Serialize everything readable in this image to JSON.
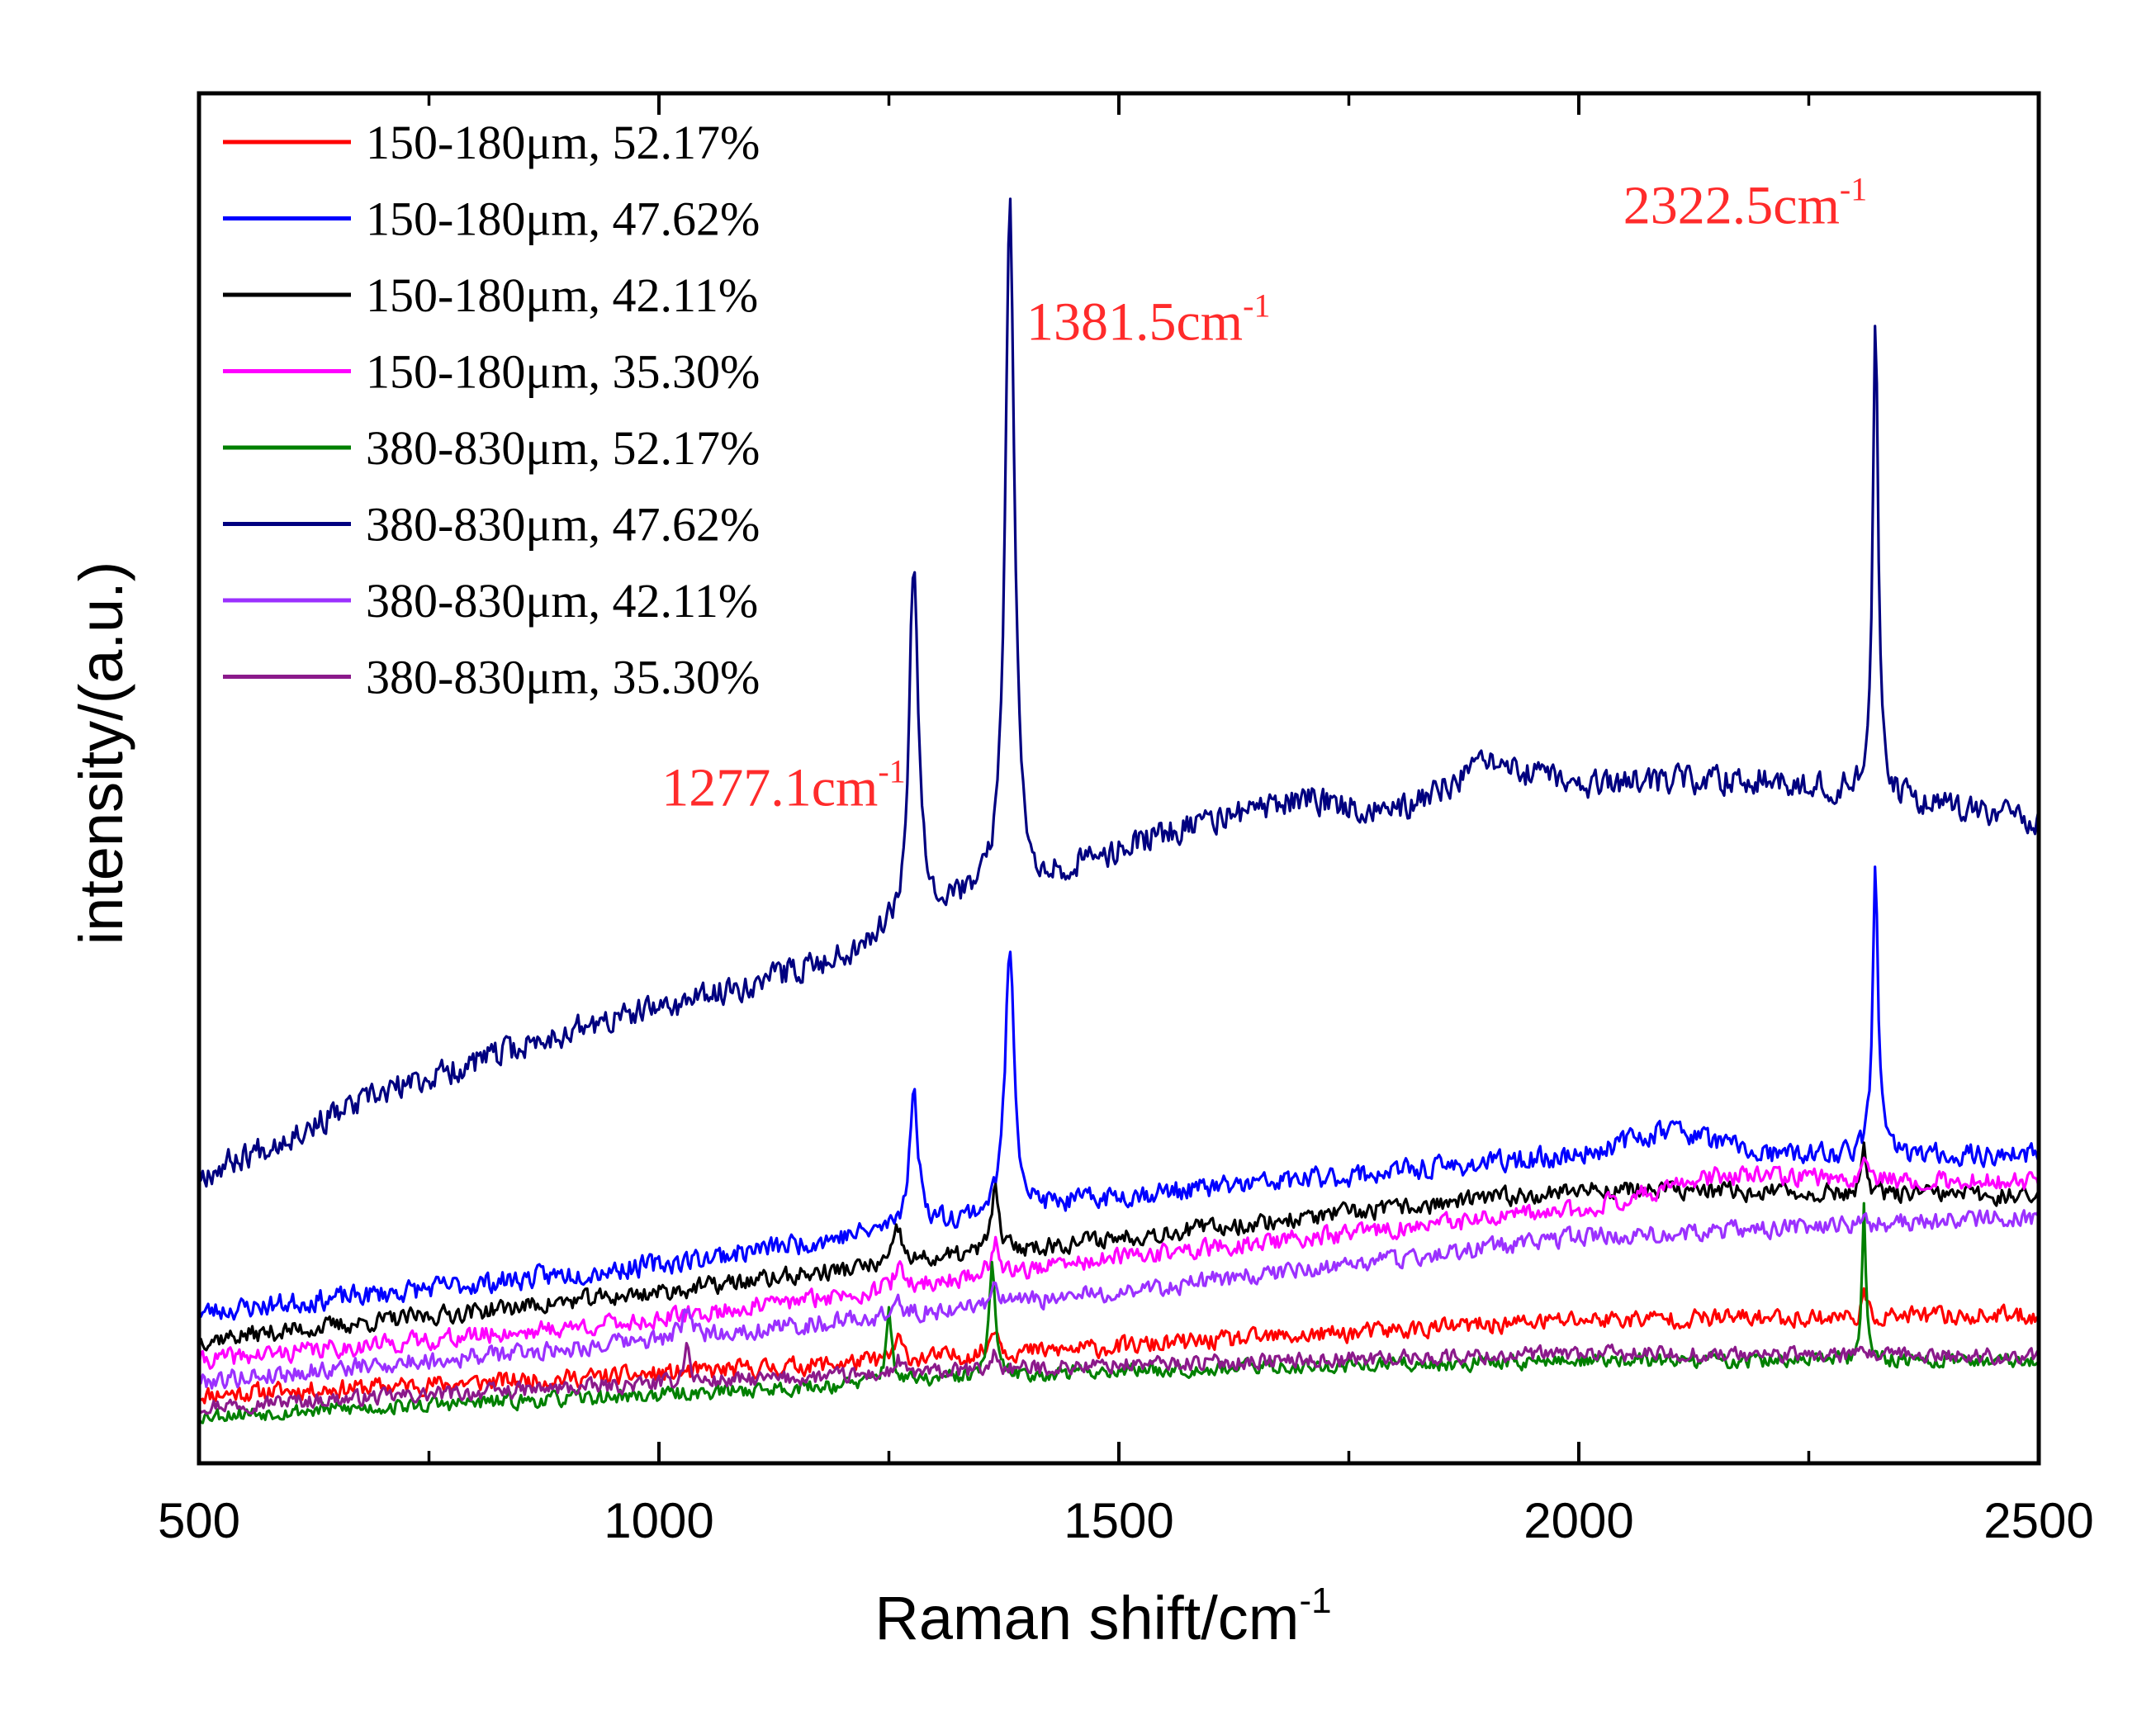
{
  "chart_data": {
    "type": "line",
    "title": "",
    "xlabel": "Raman shift/cm",
    "xlabel_sup": "-1",
    "ylabel": "intensity/(a.u.)",
    "xlim": [
      500,
      2500
    ],
    "ylim": [
      0,
      100
    ],
    "x_ticks": [
      500,
      1000,
      1500,
      2000,
      2500
    ],
    "x_tick_labels": [
      "500",
      "1000",
      "1500",
      "2000",
      "2500"
    ],
    "x_minor_ticks": [
      750,
      1250,
      1750,
      2250
    ],
    "grid": false,
    "legend_position": "top-left",
    "series": [
      {
        "name": "150-180μm, 52.17%",
        "color": "#ff0000",
        "seed": 11,
        "baseline": [
          [
            500,
            5
          ],
          [
            1000,
            6.5
          ],
          [
            1500,
            8.5
          ],
          [
            2000,
            10.5
          ],
          [
            2500,
            10.8
          ]
        ],
        "peaks": [
          [
            1260,
            1.5,
            10
          ],
          [
            1365,
            2.2,
            10
          ],
          [
            2310,
            1.5,
            6
          ]
        ],
        "noise": 0.6
      },
      {
        "name": "150-180μm, 47.62%",
        "color": "#0000ff",
        "seed": 23,
        "baseline": [
          [
            500,
            11
          ],
          [
            1000,
            14.5
          ],
          [
            1500,
            19.5
          ],
          [
            2000,
            22.5
          ],
          [
            2100,
            24.5
          ],
          [
            2200,
            22.5
          ],
          [
            2500,
            22.5
          ]
        ],
        "peaks": [
          [
            1277,
            9.5,
            12
          ],
          [
            1381.5,
            19.5,
            12
          ],
          [
            2322.5,
            21.5,
            7
          ]
        ],
        "noise": 0.7
      },
      {
        "name": "150-180μm, 42.11%",
        "color": "#000000",
        "seed": 37,
        "baseline": [
          [
            500,
            9
          ],
          [
            1000,
            12.5
          ],
          [
            1500,
            16.5
          ],
          [
            2000,
            20
          ],
          [
            2500,
            19.5
          ]
        ],
        "peaks": [
          [
            1260,
            2.5,
            10
          ],
          [
            1365,
            4.5,
            10
          ],
          [
            2310,
            3.0,
            6
          ]
        ],
        "noise": 0.6
      },
      {
        "name": "150-180μm, 35.30%",
        "color": "#ff00ff",
        "seed": 41,
        "baseline": [
          [
            500,
            7.5
          ],
          [
            1000,
            10.5
          ],
          [
            1500,
            15
          ],
          [
            2000,
            18.5
          ],
          [
            2150,
            21
          ],
          [
            2500,
            20.5
          ]
        ],
        "peaks": [
          [
            1260,
            1.5,
            10
          ],
          [
            1365,
            2.5,
            10
          ],
          [
            2310,
            2.0,
            6
          ]
        ],
        "noise": 0.6
      },
      {
        "name": "380-830μm, 52.17%",
        "color": "#008000",
        "seed": 53,
        "baseline": [
          [
            500,
            3.5
          ],
          [
            1000,
            5
          ],
          [
            1500,
            6.8
          ],
          [
            2000,
            7.5
          ],
          [
            2500,
            7.5
          ]
        ],
        "peaks": [
          [
            1250,
            5,
            8
          ],
          [
            1362,
            8,
            8
          ],
          [
            2310,
            11,
            5
          ]
        ],
        "noise": 0.5
      },
      {
        "name": "380-830μm, 47.62%",
        "color": "#000080",
        "seed": 67,
        "baseline": [
          [
            500,
            21
          ],
          [
            700,
            27
          ],
          [
            900,
            31.5
          ],
          [
            1050,
            34
          ],
          [
            1200,
            37
          ],
          [
            1300,
            40.5
          ],
          [
            1400,
            42
          ],
          [
            1550,
            46
          ],
          [
            1700,
            48.5
          ],
          [
            1800,
            47.5
          ],
          [
            1900,
            51
          ],
          [
            2000,
            49.5
          ],
          [
            2200,
            50
          ],
          [
            2500,
            47
          ]
        ],
        "peaks": [
          [
            1277,
            26,
            12
          ],
          [
            1381.5,
            50,
            12
          ],
          [
            2322.5,
            36,
            7
          ]
        ],
        "noise": 0.9
      },
      {
        "name": "380-830μm, 42.11%",
        "color": "#9b30ff",
        "seed": 79,
        "baseline": [
          [
            500,
            6
          ],
          [
            1000,
            9
          ],
          [
            1500,
            12.5
          ],
          [
            2000,
            16.5
          ],
          [
            2500,
            18
          ]
        ],
        "peaks": [
          [
            1030,
            1.5,
            15
          ],
          [
            1260,
            1.0,
            10
          ],
          [
            1365,
            1.5,
            10
          ]
        ],
        "noise": 0.6
      },
      {
        "name": "380-830μm, 35.30%",
        "color": "#8b1a8b",
        "seed": 97,
        "baseline": [
          [
            500,
            4.2
          ],
          [
            1000,
            5.8
          ],
          [
            1500,
            7.2
          ],
          [
            2000,
            8
          ],
          [
            2500,
            7.8
          ]
        ],
        "peaks": [
          [
            1030,
            3.0,
            7
          ],
          [
            1260,
            1.0,
            8
          ],
          [
            1365,
            1.2,
            8
          ]
        ],
        "noise": 0.5
      }
    ],
    "annotations": [
      {
        "text": "1277.1cm",
        "sup": "-1",
        "x": 1277.1,
        "y": 48,
        "anchor": "end"
      },
      {
        "text": "1381.5cm",
        "sup": "-1",
        "x": 1381.5,
        "y": 82,
        "anchor": "start"
      },
      {
        "text": "2322.5cm",
        "sup": "-1",
        "x": 2322.5,
        "y": 90.5,
        "anchor": "end"
      }
    ]
  }
}
